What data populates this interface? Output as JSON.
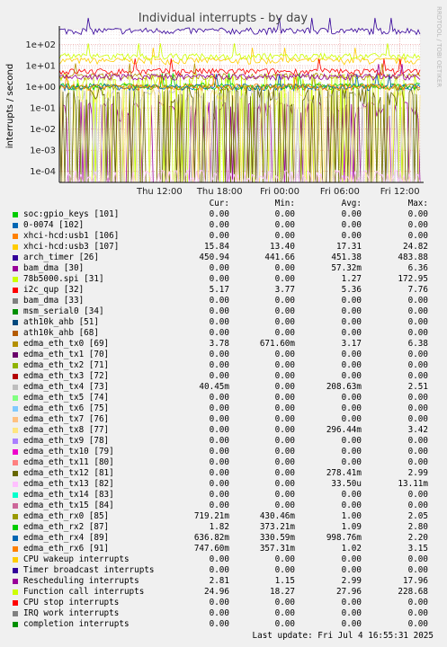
{
  "chart_data": {
    "type": "line",
    "title": "Individual interrupts - by day",
    "ylabel": "interrupts / second",
    "y_scale": "log",
    "ylim": [
      3e-05,
      500
    ],
    "y_ticks": [
      "1e+02",
      "1e+01",
      "1e+00",
      "1e-01",
      "1e-02",
      "1e-03",
      "1e-04"
    ],
    "y_tick_values": [
      100,
      10,
      1,
      0.1,
      0.01,
      0.001,
      0.0001
    ],
    "x_ticks": [
      "Thu 12:00",
      "Thu 18:00",
      "Fri 00:00",
      "Fri 06:00",
      "Fri 12:00"
    ],
    "x_range_hours": [
      -10,
      26
    ],
    "x_tick_hours": [
      0,
      6,
      12,
      18,
      24
    ],
    "side_text": "RRDTOOL / TOBI OETIKER",
    "columns": [
      "Cur:",
      "Min:",
      "Avg:",
      "Max:"
    ],
    "series": [
      {
        "name": "soc:gpio_keys [101]",
        "color": "#00cc00",
        "cur": "0.00",
        "min": "0.00",
        "avg": "0.00",
        "max": "0.00",
        "level": 0,
        "pattern": "none"
      },
      {
        "name": "0-0074 [102]",
        "color": "#0066b3",
        "cur": "0.00",
        "min": "0.00",
        "avg": "0.00",
        "max": "0.00",
        "level": 0,
        "pattern": "none"
      },
      {
        "name": "xhci-hcd:usb1 [106]",
        "color": "#ff8000",
        "cur": "0.00",
        "min": "0.00",
        "avg": "0.00",
        "max": "0.00",
        "level": 0,
        "pattern": "none"
      },
      {
        "name": "xhci-hcd:usb3 [107]",
        "color": "#ffcc00",
        "cur": "15.84",
        "min": "13.40",
        "avg": "17.31",
        "max": "24.82",
        "level": 17.31,
        "pattern": "steady"
      },
      {
        "name": "arch_timer [26]",
        "color": "#330099",
        "cur": "450.94",
        "min": "441.66",
        "avg": "451.38",
        "max": "483.88",
        "level": 451.38,
        "pattern": "steady"
      },
      {
        "name": "bam_dma [30]",
        "color": "#990099",
        "cur": "0.00",
        "min": "0.00",
        "avg": "57.32m",
        "max": "6.36",
        "level": 0.05732,
        "pattern": "sparse"
      },
      {
        "name": "78b5000.spi [31]",
        "color": "#ccff00",
        "cur": "0.00",
        "min": "0.00",
        "avg": "1.27",
        "max": "172.95",
        "level": 1.27,
        "pattern": "sparse"
      },
      {
        "name": "i2c_qup [32]",
        "color": "#ff0000",
        "cur": "5.17",
        "min": "3.77",
        "avg": "5.36",
        "max": "7.76",
        "level": 5.36,
        "pattern": "steady"
      },
      {
        "name": "bam_dma [33]",
        "color": "#808080",
        "cur": "0.00",
        "min": "0.00",
        "avg": "0.00",
        "max": "0.00",
        "level": 0,
        "pattern": "none"
      },
      {
        "name": "msm_serial0 [34]",
        "color": "#008f00",
        "cur": "0.00",
        "min": "0.00",
        "avg": "0.00",
        "max": "0.00",
        "level": 0,
        "pattern": "none"
      },
      {
        "name": "ath10k_ahb [51]",
        "color": "#00487d",
        "cur": "0.00",
        "min": "0.00",
        "avg": "0.00",
        "max": "0.00",
        "level": 0,
        "pattern": "none"
      },
      {
        "name": "ath10k_ahb [68]",
        "color": "#b35a00",
        "cur": "0.00",
        "min": "0.00",
        "avg": "0.00",
        "max": "0.00",
        "level": 0,
        "pattern": "none"
      },
      {
        "name": "edma_eth_tx0 [69]",
        "color": "#b38f00",
        "cur": "3.78",
        "min": "671.60m",
        "avg": "3.17",
        "max": "6.38",
        "level": 3.17,
        "pattern": "steady"
      },
      {
        "name": "edma_eth_tx1 [70]",
        "color": "#6b006b",
        "cur": "0.00",
        "min": "0.00",
        "avg": "0.00",
        "max": "0.00",
        "level": 0,
        "pattern": "none"
      },
      {
        "name": "edma_eth_tx2 [71]",
        "color": "#8fb300",
        "cur": "0.00",
        "min": "0.00",
        "avg": "0.00",
        "max": "0.00",
        "level": 0,
        "pattern": "none"
      },
      {
        "name": "edma_eth_tx3 [72]",
        "color": "#b30000",
        "cur": "0.00",
        "min": "0.00",
        "avg": "0.00",
        "max": "0.00",
        "level": 0,
        "pattern": "none"
      },
      {
        "name": "edma_eth_tx4 [73]",
        "color": "#bebebe",
        "cur": "40.45m",
        "min": "0.00",
        "avg": "208.63m",
        "max": "2.51",
        "level": 0.20863,
        "pattern": "sparse"
      },
      {
        "name": "edma_eth_tx5 [74]",
        "color": "#80ff80",
        "cur": "0.00",
        "min": "0.00",
        "avg": "0.00",
        "max": "0.00",
        "level": 0,
        "pattern": "none"
      },
      {
        "name": "edma_eth_tx6 [75]",
        "color": "#80c9ff",
        "cur": "0.00",
        "min": "0.00",
        "avg": "0.00",
        "max": "0.00",
        "level": 0,
        "pattern": "none"
      },
      {
        "name": "edma_eth_tx7 [76]",
        "color": "#ffc080",
        "cur": "0.00",
        "min": "0.00",
        "avg": "0.00",
        "max": "0.00",
        "level": 0,
        "pattern": "none"
      },
      {
        "name": "edma_eth_tx8 [77]",
        "color": "#ffe680",
        "cur": "0.00",
        "min": "0.00",
        "avg": "296.44m",
        "max": "3.42",
        "level": 0.29644,
        "pattern": "sparse"
      },
      {
        "name": "edma_eth_tx9 [78]",
        "color": "#aa80ff",
        "cur": "0.00",
        "min": "0.00",
        "avg": "0.00",
        "max": "0.00",
        "level": 0,
        "pattern": "none"
      },
      {
        "name": "edma_eth_tx10 [79]",
        "color": "#ee00cc",
        "cur": "0.00",
        "min": "0.00",
        "avg": "0.00",
        "max": "0.00",
        "level": 0,
        "pattern": "none"
      },
      {
        "name": "edma_eth_tx11 [80]",
        "color": "#ff8080",
        "cur": "0.00",
        "min": "0.00",
        "avg": "0.00",
        "max": "0.00",
        "level": 0,
        "pattern": "none"
      },
      {
        "name": "edma_eth_tx12 [81]",
        "color": "#666600",
        "cur": "0.00",
        "min": "0.00",
        "avg": "278.41m",
        "max": "2.99",
        "level": 0.27841,
        "pattern": "sparse"
      },
      {
        "name": "edma_eth_tx13 [82]",
        "color": "#ffbfff",
        "cur": "0.00",
        "min": "0.00",
        "avg": "33.50u",
        "max": "13.11m",
        "level": 3.35e-05,
        "pattern": "sparse"
      },
      {
        "name": "edma_eth_tx14 [83]",
        "color": "#00ffcc",
        "cur": "0.00",
        "min": "0.00",
        "avg": "0.00",
        "max": "0.00",
        "level": 0,
        "pattern": "none"
      },
      {
        "name": "edma_eth_tx15 [84]",
        "color": "#cc6699",
        "cur": "0.00",
        "min": "0.00",
        "avg": "0.00",
        "max": "0.00",
        "level": 0,
        "pattern": "none"
      },
      {
        "name": "edma_eth_rx0 [85]",
        "color": "#999900",
        "cur": "719.21m",
        "min": "430.46m",
        "avg": "1.00",
        "max": "2.05",
        "level": 1.0,
        "pattern": "steady"
      },
      {
        "name": "edma_eth_rx2 [87]",
        "color": "#00cc00",
        "cur": "1.82",
        "min": "373.21m",
        "avg": "1.09",
        "max": "2.80",
        "level": 1.09,
        "pattern": "steady"
      },
      {
        "name": "edma_eth_rx4 [89]",
        "color": "#0066b3",
        "cur": "636.82m",
        "min": "330.59m",
        "avg": "998.76m",
        "max": "2.20",
        "level": 0.99876,
        "pattern": "steady"
      },
      {
        "name": "edma_eth_rx6 [91]",
        "color": "#ff8000",
        "cur": "747.60m",
        "min": "357.31m",
        "avg": "1.02",
        "max": "3.15",
        "level": 1.02,
        "pattern": "steady"
      },
      {
        "name": "CPU wakeup interrupts",
        "color": "#ffcc00",
        "cur": "0.00",
        "min": "0.00",
        "avg": "0.00",
        "max": "0.00",
        "level": 0,
        "pattern": "none"
      },
      {
        "name": "Timer broadcast interrupts",
        "color": "#330099",
        "cur": "0.00",
        "min": "0.00",
        "avg": "0.00",
        "max": "0.00",
        "level": 0,
        "pattern": "none"
      },
      {
        "name": "Rescheduling interrupts",
        "color": "#990099",
        "cur": "2.81",
        "min": "1.15",
        "avg": "2.99",
        "max": "17.96",
        "level": 2.99,
        "pattern": "steady"
      },
      {
        "name": "Function call interrupts",
        "color": "#ccff00",
        "cur": "24.96",
        "min": "18.27",
        "avg": "27.96",
        "max": "228.68",
        "level": 27.96,
        "pattern": "steady"
      },
      {
        "name": "CPU stop interrupts",
        "color": "#ff0000",
        "cur": "0.00",
        "min": "0.00",
        "avg": "0.00",
        "max": "0.00",
        "level": 0,
        "pattern": "none"
      },
      {
        "name": "IRQ work interrupts",
        "color": "#808080",
        "cur": "0.00",
        "min": "0.00",
        "avg": "0.00",
        "max": "0.00",
        "level": 0,
        "pattern": "none"
      },
      {
        "name": "completion interrupts",
        "color": "#008f00",
        "cur": "0.00",
        "min": "0.00",
        "avg": "0.00",
        "max": "0.00",
        "level": 0,
        "pattern": "none"
      }
    ],
    "footer": "Last update:  Fri Jul  4 16:55:31 2025"
  }
}
